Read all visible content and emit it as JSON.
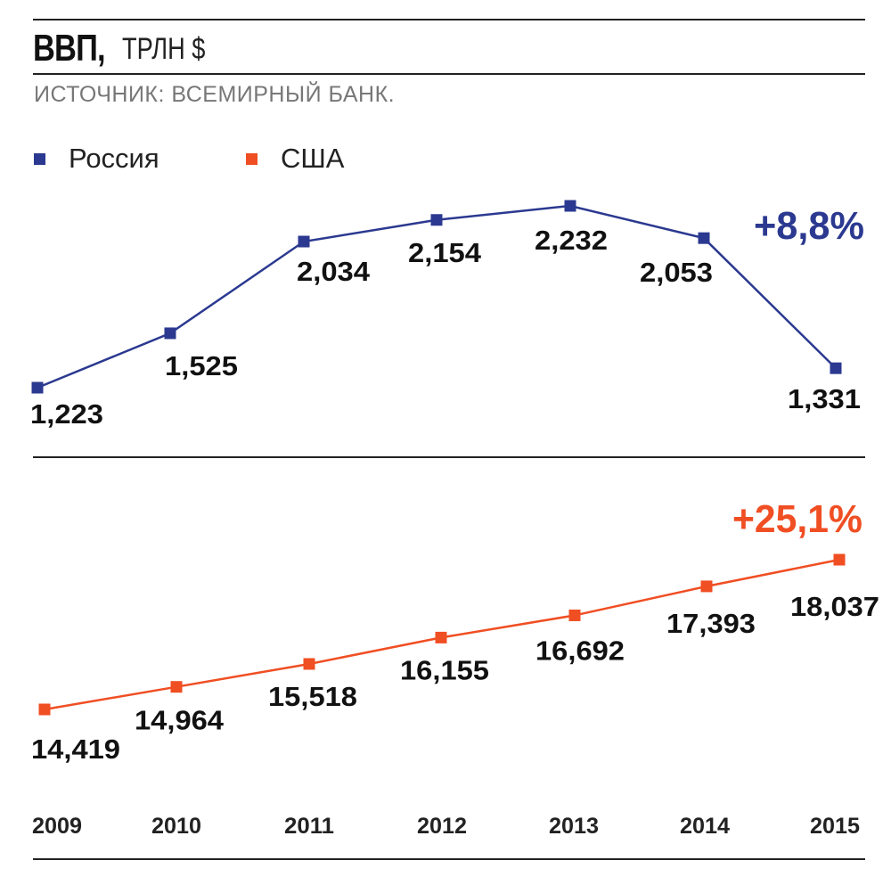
{
  "header": {
    "title": "ВВП,",
    "unit": "ТРЛН $",
    "source": "ИСТОЧНИК: ВСЕМИРНЫЙ БАНК."
  },
  "legend": {
    "russia_label": "Россия",
    "usa_label": "США"
  },
  "colors": {
    "russia": "#2b3990",
    "usa": "#f04e23"
  },
  "chart_data": [
    {
      "type": "line",
      "x": [
        "2009",
        "2010",
        "2011",
        "2012",
        "2013",
        "2014",
        "2015"
      ],
      "series": [
        {
          "name": "Россия",
          "values": [
            1.223,
            1.525,
            2.034,
            2.154,
            2.232,
            2.053,
            1.331
          ],
          "labels": [
            "1,223",
            "1,525",
            "2,034",
            "2,154",
            "2,232",
            "2,053",
            "1,331"
          ]
        }
      ],
      "annotation": "+8,8%",
      "ylim": [
        1.1,
        2.4
      ]
    },
    {
      "type": "line",
      "x": [
        "2009",
        "2010",
        "2011",
        "2012",
        "2013",
        "2014",
        "2015"
      ],
      "series": [
        {
          "name": "США",
          "values": [
            14.419,
            14.964,
            15.518,
            16.155,
            16.692,
            17.393,
            18.037
          ],
          "labels": [
            "14,419",
            "14,964",
            "15,518",
            "16,155",
            "16,692",
            "17,393",
            "18,037"
          ]
        }
      ],
      "annotation": "+25,1%",
      "ylim": [
        13.5,
        18.6
      ]
    }
  ]
}
